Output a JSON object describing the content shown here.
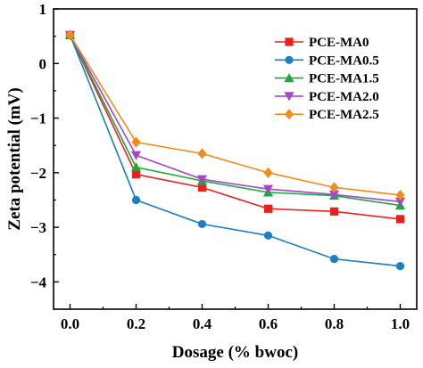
{
  "chart_data": {
    "type": "line",
    "title": "",
    "xlabel": "Dosage (% bwoc)",
    "ylabel": "Zeta potential (mV)",
    "x": [
      0.0,
      0.2,
      0.4,
      0.6,
      0.8,
      1.0
    ],
    "xlim": [
      -0.05,
      1.05
    ],
    "ylim": [
      -4.5,
      1.0
    ],
    "xticks": [
      "0.0",
      "0.2",
      "0.4",
      "0.6",
      "0.8",
      "1.0"
    ],
    "yticks": [
      "1",
      "0",
      "−1",
      "−2",
      "−3",
      "−4"
    ],
    "grid": false,
    "legend_position": "upper-right",
    "series": [
      {
        "name": "PCE-MA0",
        "color": "#e8201e",
        "marker": "square",
        "values": [
          0.52,
          -2.03,
          -2.27,
          -2.66,
          -2.71,
          -2.85
        ]
      },
      {
        "name": "PCE-MA0.5",
        "color": "#1b7fc0",
        "marker": "circle",
        "values": [
          0.52,
          -2.5,
          -2.94,
          -3.15,
          -3.58,
          -3.71
        ]
      },
      {
        "name": "PCE-MA1.5",
        "color": "#1aaa3c",
        "marker": "triangle",
        "values": [
          0.52,
          -1.9,
          -2.15,
          -2.36,
          -2.42,
          -2.6
        ]
      },
      {
        "name": "PCE-MA2.0",
        "color": "#a646c8",
        "marker": "triangle-down",
        "values": [
          0.52,
          -1.68,
          -2.12,
          -2.3,
          -2.4,
          -2.53
        ]
      },
      {
        "name": "PCE-MA2.5",
        "color": "#f28c1a",
        "marker": "diamond",
        "values": [
          0.52,
          -1.44,
          -1.65,
          -2.0,
          -2.27,
          -2.41
        ]
      }
    ]
  }
}
